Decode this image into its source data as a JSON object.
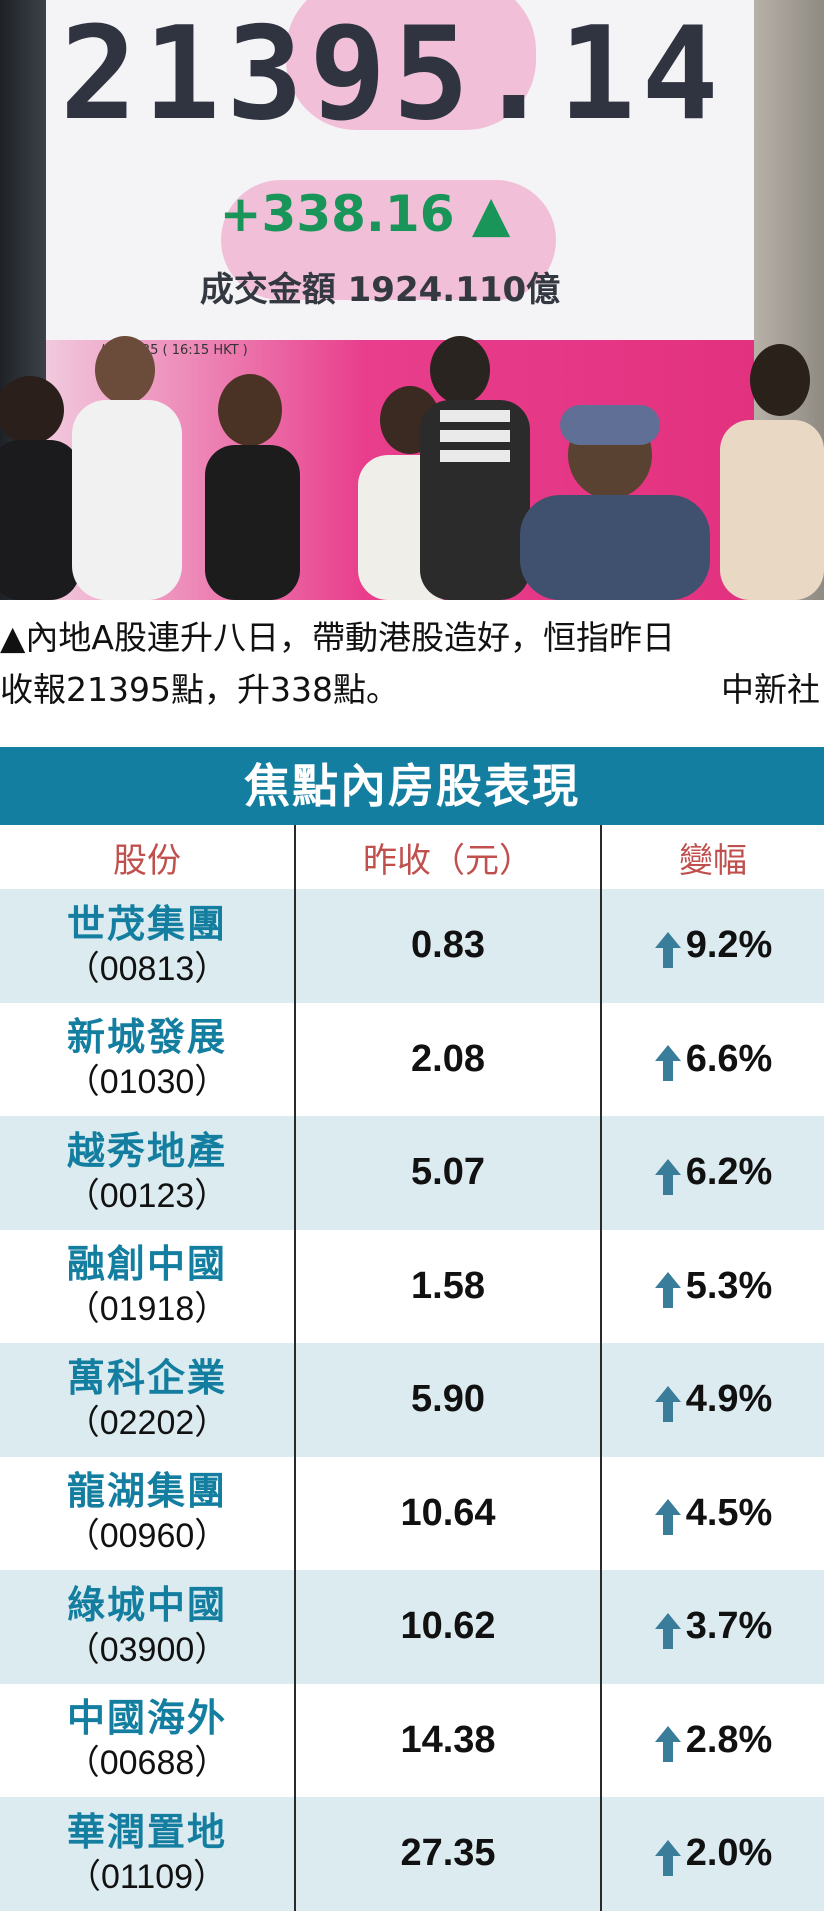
{
  "photo": {
    "index_value": "21395.14",
    "index_change": "+338.16 ▲",
    "turnover": "成交金額 1924.110億",
    "timestamp": "/04/2025 ( 16:15 HKT )"
  },
  "caption": {
    "line1": "▲內地A股連升八日，帶動港股造好，恒指昨日",
    "line2": "收報21395點，升338點。",
    "credit": "中新社"
  },
  "table": {
    "title": "焦點內房股表現",
    "headers": [
      "股份",
      "昨收（元）",
      "變幅"
    ],
    "rows": [
      {
        "name": "世茂集團",
        "code": "（00813）",
        "close": "0.83",
        "change": "9.2%"
      },
      {
        "name": "新城發展",
        "code": "（01030）",
        "close": "2.08",
        "change": "6.6%"
      },
      {
        "name": "越秀地產",
        "code": "（00123）",
        "close": "5.07",
        "change": "6.2%"
      },
      {
        "name": "融創中國",
        "code": "（01918）",
        "close": "1.58",
        "change": "5.3%"
      },
      {
        "name": "萬科企業",
        "code": "（02202）",
        "close": "5.90",
        "change": "4.9%"
      },
      {
        "name": "龍湖集團",
        "code": "（00960）",
        "close": "10.64",
        "change": "4.5%"
      },
      {
        "name": "綠城中國",
        "code": "（03900）",
        "close": "10.62",
        "change": "3.7%"
      },
      {
        "name": "中國海外",
        "code": "（00688）",
        "close": "14.38",
        "change": "2.8%"
      },
      {
        "name": "華潤置地",
        "code": "（01109）",
        "close": "27.35",
        "change": "2.0%"
      }
    ]
  },
  "colors": {
    "title_bg": "#137e9f",
    "header_text": "#c0504d",
    "stock_name": "#137e9f",
    "row_shade": "#dcebf0",
    "up_arrow": "#3a7d9a",
    "index_change": "#19955a"
  },
  "icons": {
    "up": "up-arrow-icon"
  }
}
